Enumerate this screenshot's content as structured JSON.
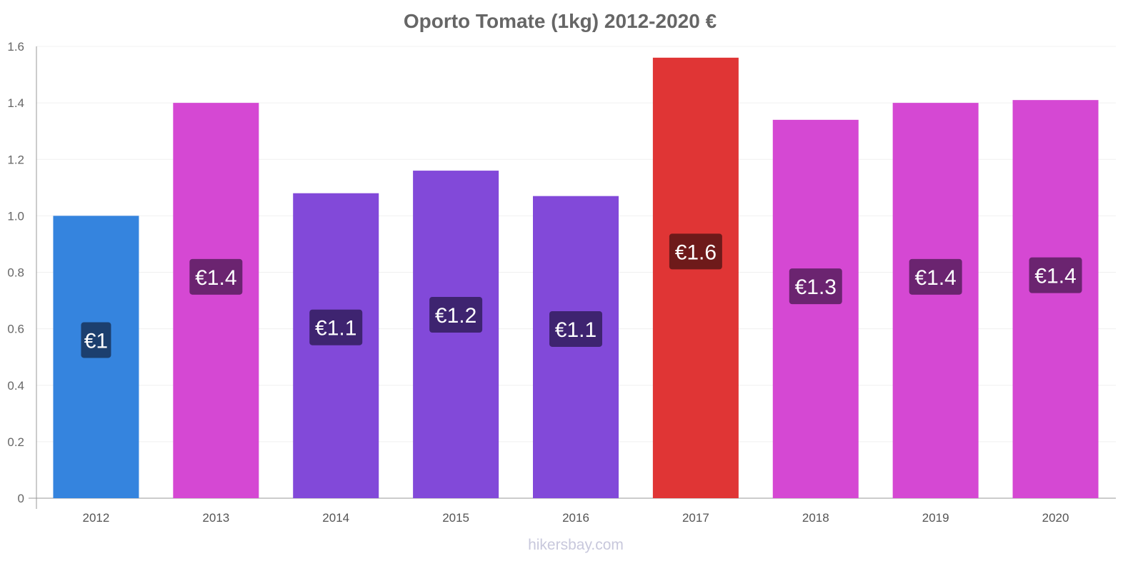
{
  "chart_data": {
    "type": "bar",
    "title": "Oporto Tomate (1kg) 2012-2020 €",
    "xlabel": "",
    "ylabel": "",
    "ylim": [
      0,
      1.6
    ],
    "yticks": [
      "0",
      "0.2",
      "0.4",
      "0.6",
      "0.8",
      "1.0",
      "1.2",
      "1.4",
      "1.6"
    ],
    "grid": true,
    "categories": [
      "2012",
      "2013",
      "2014",
      "2015",
      "2016",
      "2017",
      "2018",
      "2019",
      "2020"
    ],
    "values": [
      1.0,
      1.4,
      1.08,
      1.16,
      1.07,
      1.56,
      1.34,
      1.4,
      1.41
    ],
    "data_labels": [
      "€1",
      "€1.4",
      "€1.1",
      "€1.2",
      "€1.1",
      "€1.6",
      "€1.3",
      "€1.4",
      "€1.4"
    ],
    "bar_colors": [
      "#3584de",
      "#d548d3",
      "#8249d9",
      "#8249d9",
      "#8249d9",
      "#e03535",
      "#d548d3",
      "#d548d3",
      "#d548d3"
    ],
    "label_colors": [
      "#1c3f6e",
      "#6b2470",
      "#3e2470",
      "#3e2470",
      "#3e2470",
      "#6e1a1a",
      "#6b2470",
      "#6b2470",
      "#6b2470"
    ]
  },
  "watermark": "hikersbay.com"
}
